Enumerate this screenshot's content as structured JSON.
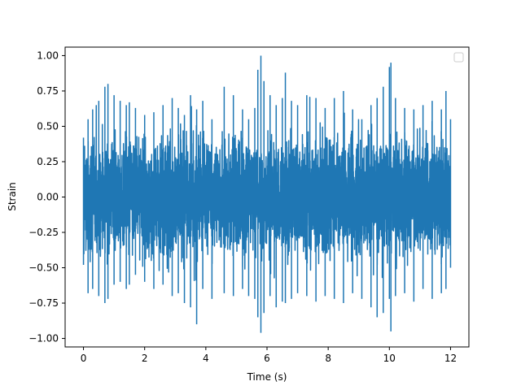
{
  "chart_data": {
    "type": "line",
    "title": "",
    "xlabel": "Time (s)",
    "ylabel": "Strain",
    "xlim": [
      -0.6,
      12.6
    ],
    "ylim": [
      -1.06,
      1.06
    ],
    "xticks": [
      0,
      2,
      4,
      6,
      8,
      10,
      12
    ],
    "xtick_labels": [
      "0",
      "2",
      "4",
      "6",
      "8",
      "10",
      "12"
    ],
    "yticks": [
      -1.0,
      -0.75,
      -0.5,
      -0.25,
      0.0,
      0.25,
      0.5,
      0.75,
      1.0
    ],
    "ytick_labels": [
      "−1.00",
      "−0.75",
      "−0.50",
      "−0.25",
      "0.00",
      "0.25",
      "0.50",
      "0.75",
      "1.00"
    ],
    "grid": false,
    "legend": {
      "placement": "upper right",
      "entries": []
    },
    "series": [
      {
        "color": "#1f77b4",
        "x_range": [
          0,
          12
        ],
        "envelope": {
          "x": [
            0.0,
            0.15,
            0.3,
            0.5,
            0.7,
            0.8,
            1.0,
            1.2,
            1.4,
            1.5,
            1.7,
            2.0,
            2.3,
            2.6,
            2.9,
            3.1,
            3.3,
            3.5,
            3.7,
            3.9,
            4.2,
            4.6,
            4.9,
            5.2,
            5.4,
            5.6,
            5.7,
            5.8,
            5.9,
            6.1,
            6.3,
            6.5,
            6.6,
            6.8,
            7.0,
            7.3,
            7.6,
            7.9,
            8.2,
            8.5,
            8.8,
            9.1,
            9.4,
            9.6,
            9.8,
            10.0,
            10.05,
            10.2,
            10.5,
            10.8,
            11.1,
            11.4,
            11.7,
            11.85,
            12.0
          ],
          "max": [
            0.42,
            0.55,
            0.62,
            0.68,
            0.78,
            0.8,
            0.72,
            0.68,
            0.65,
            0.67,
            0.63,
            0.58,
            0.6,
            0.65,
            0.7,
            0.63,
            0.58,
            0.72,
            0.62,
            0.68,
            0.55,
            0.78,
            0.72,
            0.62,
            0.55,
            0.63,
            0.9,
            1.0,
            0.82,
            0.72,
            0.65,
            0.7,
            0.88,
            0.68,
            0.65,
            0.72,
            0.7,
            0.63,
            0.7,
            0.75,
            0.62,
            0.55,
            0.65,
            0.7,
            0.78,
            0.92,
            0.95,
            0.7,
            0.63,
            0.62,
            0.65,
            0.68,
            0.62,
            0.75,
            0.55
          ],
          "min": [
            -0.48,
            -0.68,
            -0.65,
            -0.7,
            -0.75,
            -0.72,
            -0.62,
            -0.6,
            -0.65,
            -0.62,
            -0.55,
            -0.6,
            -0.65,
            -0.62,
            -0.7,
            -0.68,
            -0.75,
            -0.78,
            -0.9,
            -0.65,
            -0.72,
            -0.68,
            -0.7,
            -0.65,
            -0.7,
            -0.72,
            -0.85,
            -0.96,
            -0.82,
            -0.7,
            -0.78,
            -0.74,
            -0.75,
            -0.72,
            -0.68,
            -0.7,
            -0.74,
            -0.7,
            -0.72,
            -0.75,
            -0.68,
            -0.72,
            -0.78,
            -0.85,
            -0.82,
            -0.72,
            -0.95,
            -0.7,
            -0.68,
            -0.74,
            -0.65,
            -0.72,
            -0.68,
            -0.65,
            -0.5
          ]
        }
      }
    ]
  }
}
